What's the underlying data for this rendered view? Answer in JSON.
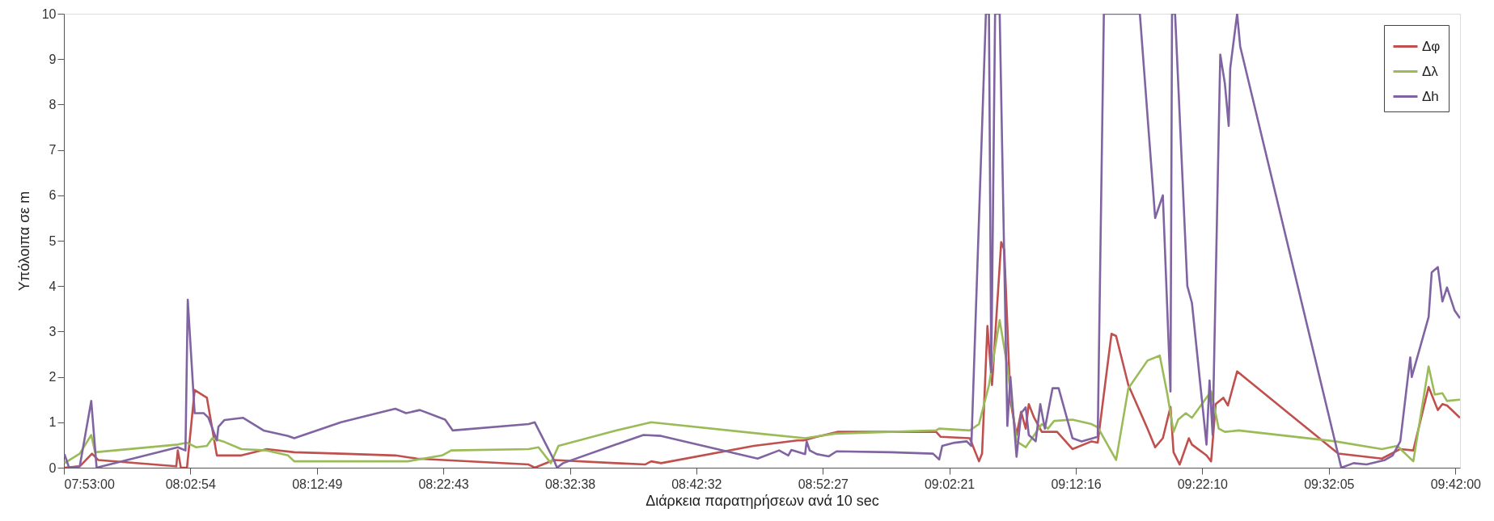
{
  "chart_data": {
    "type": "line",
    "xlabel": "Διάρκεια παρατηρήσεων ανά 10 sec",
    "ylabel": "Υπόλοιπα σε m",
    "xlim": [
      7.8833,
      9.706
    ],
    "ylim": [
      0,
      10
    ],
    "xticks": [
      {
        "value": 7.883333,
        "label": "07:53:00"
      },
      {
        "value": 8.048333,
        "label": "08:02:54"
      },
      {
        "value": 8.213611,
        "label": "08:12:49"
      },
      {
        "value": 8.378611,
        "label": "08:22:43"
      },
      {
        "value": 8.543889,
        "label": "08:32:38"
      },
      {
        "value": 8.708889,
        "label": "08:42:32"
      },
      {
        "value": 8.874167,
        "label": "08:52:27"
      },
      {
        "value": 9.039167,
        "label": "09:02:21"
      },
      {
        "value": 9.204444,
        "label": "09:12:16"
      },
      {
        "value": 9.369444,
        "label": "09:22:10"
      },
      {
        "value": 9.534722,
        "label": "09:32:05"
      },
      {
        "value": 9.7,
        "label": "09:42:00"
      }
    ],
    "yticks": [
      0,
      1,
      2,
      3,
      4,
      5,
      6,
      7,
      8,
      9,
      10
    ],
    "grid": false,
    "legend": "top right",
    "marker": "none",
    "line_style": "solid",
    "series": [
      {
        "name": "Δφ",
        "color": "#c0504d",
        "x": [
          7.884,
          7.904,
          7.92,
          7.928,
          8.03,
          8.032,
          8.036,
          8.044,
          8.054,
          8.07,
          8.083,
          8.115,
          8.148,
          8.184,
          8.245,
          8.316,
          8.344,
          8.49,
          8.498,
          8.523,
          8.604,
          8.642,
          8.65,
          8.663,
          8.784,
          8.841,
          8.849,
          8.866,
          8.894,
          8.963,
          9.022,
          9.028,
          9.066,
          9.078,
          9.082,
          9.089,
          9.095,
          9.107,
          9.111,
          9.119,
          9.127,
          9.133,
          9.139,
          9.143,
          9.15,
          9.16,
          9.18,
          9.2,
          9.225,
          9.233,
          9.251,
          9.257,
          9.273,
          9.298,
          9.308,
          9.318,
          9.328,
          9.332,
          9.34,
          9.352,
          9.356,
          9.375,
          9.381,
          9.387,
          9.397,
          9.403,
          9.415,
          9.547,
          9.604,
          9.628,
          9.645,
          9.665,
          9.677,
          9.683,
          9.689,
          9.706
        ],
        "values": [
          0,
          0.03,
          0.31,
          0.17,
          0.03,
          0.38,
          0,
          0,
          1.71,
          1.54,
          0.27,
          0.27,
          0.41,
          0.34,
          0.31,
          0.27,
          0.2,
          0.07,
          0,
          0.17,
          0.1,
          0.07,
          0.14,
          0.1,
          0.48,
          0.6,
          0.6,
          0.68,
          0.79,
          0.79,
          0.79,
          0.68,
          0.65,
          0.14,
          0.31,
          3.12,
          1.82,
          4.97,
          4.8,
          1.47,
          0.72,
          1.23,
          0.86,
          1.4,
          1.1,
          0.79,
          0.79,
          0.41,
          0.58,
          0.55,
          2.95,
          2.9,
          1.82,
          0.86,
          0.45,
          0.65,
          1.34,
          0.34,
          0.07,
          0.65,
          0.51,
          0.27,
          0.14,
          1.4,
          1.54,
          1.37,
          2.12,
          0.31,
          0.2,
          0.41,
          0.38,
          1.78,
          1.27,
          1.4,
          1.37,
          1.1
        ]
      },
      {
        "name": "Δλ",
        "color": "#9bbb59",
        "x": [
          7.884,
          7.904,
          7.919,
          7.924,
          8.032,
          8.044,
          8.056,
          8.07,
          8.077,
          8.091,
          8.115,
          8.148,
          8.176,
          8.184,
          8.245,
          8.332,
          8.377,
          8.389,
          8.49,
          8.503,
          8.519,
          8.529,
          8.604,
          8.65,
          8.792,
          8.851,
          8.89,
          8.963,
          9.022,
          9.026,
          9.066,
          9.078,
          9.091,
          9.105,
          9.115,
          9.127,
          9.139,
          9.16,
          9.168,
          9.176,
          9.2,
          9.225,
          9.233,
          9.257,
          9.273,
          9.298,
          9.314,
          9.324,
          9.332,
          9.338,
          9.348,
          9.356,
          9.381,
          9.391,
          9.399,
          9.417,
          9.543,
          9.604,
          9.624,
          9.645,
          9.665,
          9.673,
          9.683,
          9.689,
          9.706
        ],
        "values": [
          0.1,
          0.31,
          0.72,
          0.34,
          0.51,
          0.55,
          0.45,
          0.48,
          0.65,
          0.58,
          0.41,
          0.38,
          0.27,
          0.14,
          0.14,
          0.14,
          0.27,
          0.38,
          0.41,
          0.45,
          0.1,
          0.48,
          0.82,
          1.0,
          0.75,
          0.65,
          0.75,
          0.79,
          0.82,
          0.86,
          0.82,
          0.96,
          1.82,
          3.25,
          2.23,
          0.58,
          0.45,
          0.96,
          0.86,
          1.03,
          1.06,
          0.96,
          0.89,
          0.17,
          1.75,
          2.36,
          2.47,
          1.61,
          0.79,
          1.06,
          1.2,
          1.1,
          1.68,
          0.86,
          0.79,
          0.82,
          0.58,
          0.41,
          0.48,
          0.14,
          2.23,
          1.61,
          1.64,
          1.47,
          1.5
        ]
      },
      {
        "name": "Δh",
        "color": "#8064a2",
        "x": [
          7.884,
          7.89,
          7.904,
          7.919,
          7.926,
          8.032,
          8.042,
          8.045,
          8.054,
          8.066,
          8.072,
          8.083,
          8.085,
          8.093,
          8.117,
          8.144,
          8.176,
          8.184,
          8.245,
          8.316,
          8.33,
          8.348,
          8.381,
          8.391,
          8.49,
          8.498,
          8.523,
          8.527,
          8.535,
          8.604,
          8.64,
          8.663,
          8.789,
          8.817,
          8.829,
          8.833,
          8.851,
          8.853,
          8.857,
          8.866,
          8.882,
          8.892,
          8.963,
          9.018,
          9.026,
          9.03,
          9.046,
          9.062,
          9.068,
          9.087,
          9.091,
          9.094,
          9.099,
          9.105,
          9.115,
          9.119,
          9.127,
          9.133,
          9.139,
          9.143,
          9.152,
          9.158,
          9.164,
          9.174,
          9.182,
          9.2,
          9.212,
          9.233,
          9.241,
          9.288,
          9.308,
          9.318,
          9.328,
          9.33,
          9.334,
          9.35,
          9.356,
          9.375,
          9.379,
          9.383,
          9.393,
          9.399,
          9.404,
          9.406,
          9.415,
          9.419,
          9.551,
          9.567,
          9.584,
          9.608,
          9.618,
          9.628,
          9.641,
          9.643,
          9.665,
          9.669,
          9.677,
          9.683,
          9.689,
          9.699,
          9.706
        ],
        "values": [
          0.3,
          0,
          0.03,
          1.47,
          0,
          0.45,
          0.38,
          3.7,
          1.2,
          1.2,
          1.1,
          0.6,
          0.9,
          1.05,
          1.1,
          0.82,
          0.7,
          0.65,
          1.0,
          1.3,
          1.2,
          1.27,
          1.06,
          0.82,
          0.96,
          1.0,
          0.17,
          0,
          0.1,
          0.51,
          0.72,
          0.7,
          0.2,
          0.38,
          0.27,
          0.39,
          0.3,
          0.58,
          0.38,
          0.3,
          0.25,
          0.36,
          0.34,
          0.31,
          0.18,
          0.48,
          0.55,
          0.58,
          0.48,
          10,
          10,
          2.1,
          10,
          10,
          0.92,
          2.0,
          0.24,
          1.2,
          1.33,
          0.72,
          0.58,
          1.4,
          0.86,
          1.75,
          1.75,
          0.65,
          0.58,
          0.68,
          10,
          10,
          5.5,
          6.0,
          1.68,
          10,
          10,
          4.0,
          3.63,
          0.51,
          1.92,
          0.72,
          9.1,
          8.46,
          7.53,
          8.8,
          10,
          9.28,
          0,
          0.1,
          0.07,
          0.17,
          0.27,
          0.58,
          2.43,
          2.0,
          3.32,
          4.3,
          4.42,
          3.66,
          3.97,
          3.46,
          3.29
        ]
      }
    ]
  }
}
